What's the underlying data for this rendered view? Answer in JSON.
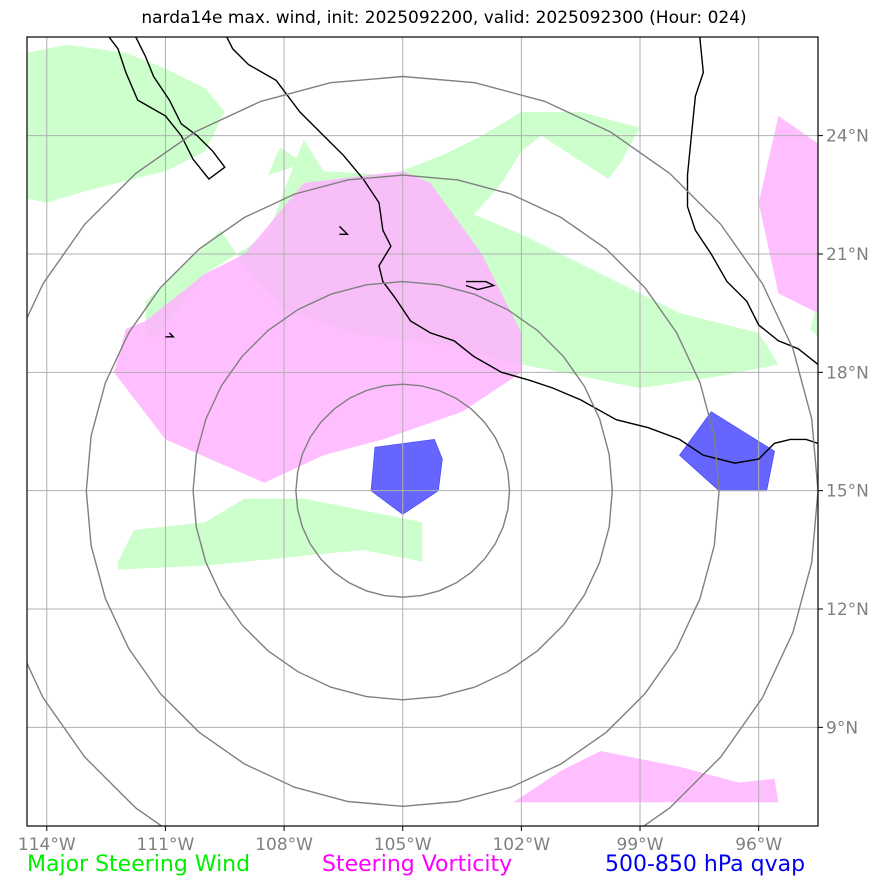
{
  "title": "narda14e max. wind, init: 2025092200, valid: 2025092300 (Hour: 024)",
  "map": {
    "lon_range": [
      -114.5,
      -94.5
    ],
    "lat_range": [
      6.5,
      26.5
    ],
    "lon_ticks": [
      {
        "value": -114,
        "label": "114°W"
      },
      {
        "value": -111,
        "label": "111°W"
      },
      {
        "value": -108,
        "label": "108°W"
      },
      {
        "value": -105,
        "label": "105°W"
      },
      {
        "value": -102,
        "label": "102°W"
      },
      {
        "value": -99,
        "label": "99°W"
      },
      {
        "value": -96,
        "label": "96°W"
      }
    ],
    "lat_ticks": [
      {
        "value": 9,
        "label": "9°N"
      },
      {
        "value": 12,
        "label": "12°N"
      },
      {
        "value": 15,
        "label": "15°N"
      },
      {
        "value": 18,
        "label": "18°N"
      },
      {
        "value": 21,
        "label": "21°N"
      },
      {
        "value": 24,
        "label": "24°N"
      }
    ],
    "colors": {
      "steering_wind": "#ccffcc",
      "steering_vorticity": "#ffb3ff",
      "qvap": "#6666ff",
      "range_rings": "#808080",
      "grid": "#b0b0b0",
      "coast": "#000000"
    },
    "ring_center": {
      "lon": -105,
      "lat": 15
    },
    "ring_radii_deg": [
      2.7,
      5.3,
      8.0,
      10.5
    ]
  },
  "legend": {
    "wind": {
      "label": "Major Steering Wind",
      "color": "#00ee00"
    },
    "vorticity": {
      "label": "Steering Vorticity",
      "color": "#ff00ff"
    },
    "qvap": {
      "label": "500-850 hPa qvap",
      "color": "#0000ee"
    }
  }
}
